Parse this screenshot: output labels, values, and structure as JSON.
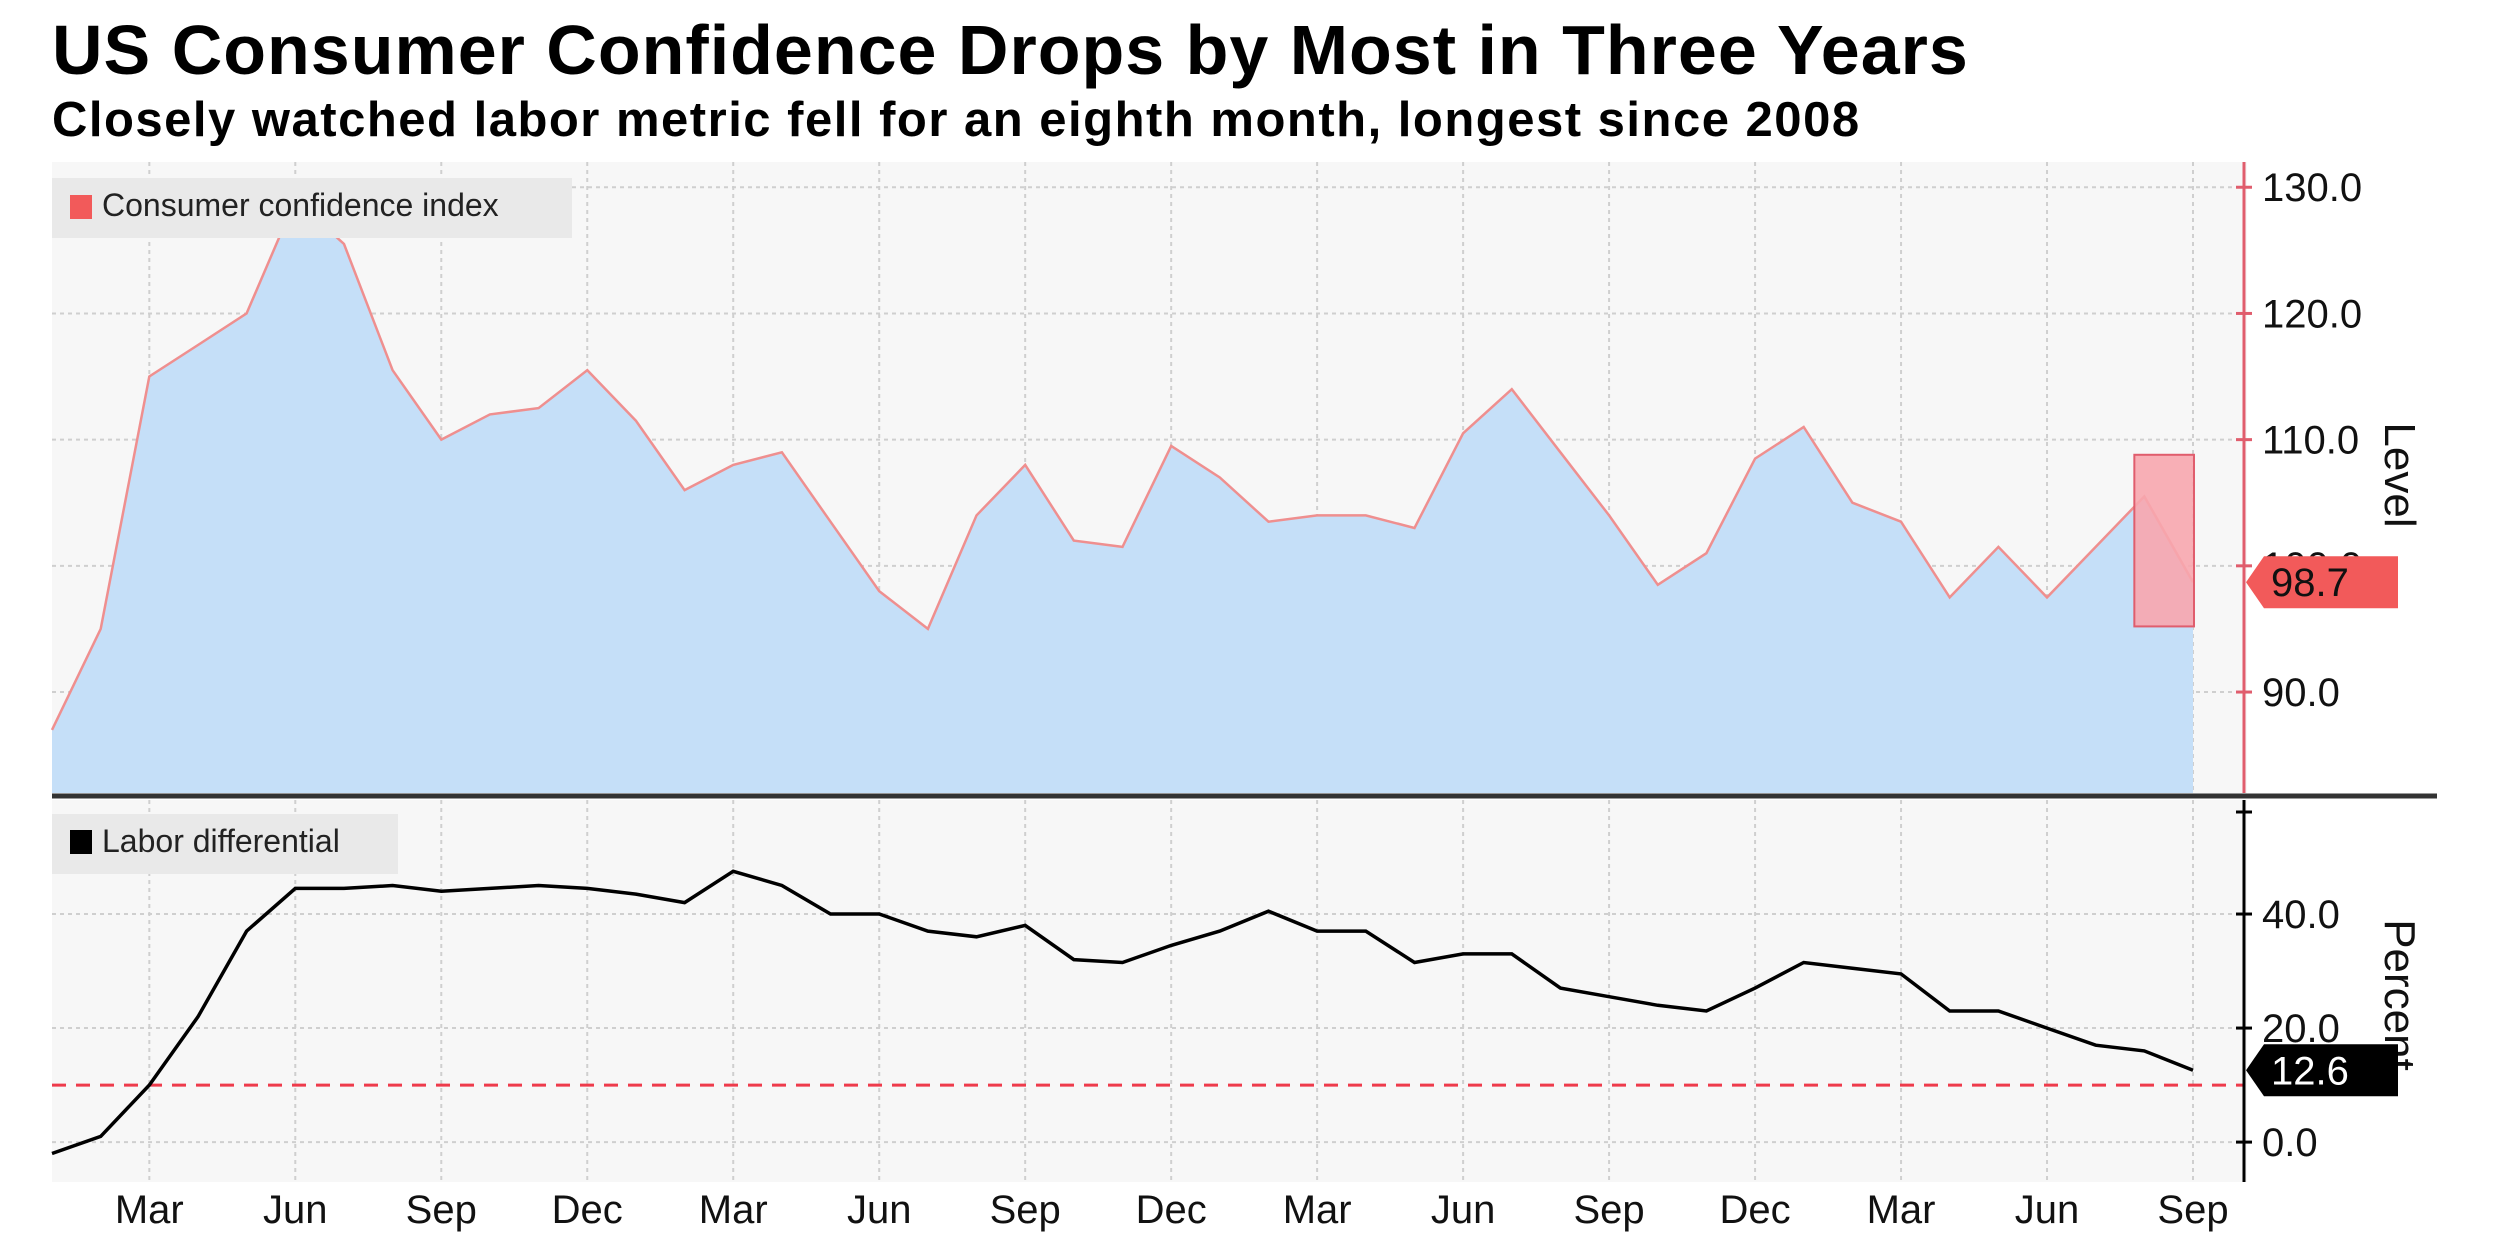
{
  "chart_data": {
    "title": "US Consumer Confidence Drops by Most in Three Years",
    "subtitle": "Closely watched labor metric fell for an eighth month, longest since 2008",
    "x_ticks": [
      "Mar",
      "Jun",
      "Sep",
      "Dec",
      "Mar",
      "Jun",
      "Sep",
      "Dec",
      "Mar",
      "Jun",
      "Sep",
      "Dec",
      "Mar",
      "Jun",
      "Sep"
    ],
    "panels": [
      {
        "type": "area",
        "legend": "Consumer confidence index",
        "ylabel": "Level",
        "ylim": [
          82,
          132
        ],
        "ticks": [
          90,
          100,
          110,
          120,
          130
        ],
        "tick_labels": [
          "90.0",
          "100.0",
          "110.0",
          "120.0",
          "130.0"
        ],
        "values": [
          87,
          95,
          115,
          117.5,
          120,
          129,
          125.5,
          115.5,
          110,
          112,
          112.5,
          115.5,
          111.5,
          106,
          108,
          109,
          103.5,
          98,
          95,
          104,
          108,
          102,
          101.5,
          109.5,
          107,
          103.5,
          104,
          104,
          103,
          110.5,
          114,
          109,
          104,
          98.5,
          101,
          108.5,
          111,
          105,
          103.5,
          97.5,
          101.5,
          97.5,
          101.5,
          105.5,
          98.7
        ],
        "last_value_label": "98.7",
        "highlight": {
          "from_index": 43,
          "to_index": 44,
          "ymin": 95.2,
          "ymax": 108.8
        }
      },
      {
        "type": "line",
        "legend": "Labor differential",
        "ylabel": "Percent",
        "ylim": [
          -7,
          60
        ],
        "ticks": [
          0,
          20,
          40
        ],
        "tick_labels": [
          "0.0",
          "20.0",
          "40.0"
        ],
        "reference_line": 10,
        "values": [
          -2,
          1,
          10,
          22,
          37,
          44.5,
          44.5,
          45,
          44,
          44.5,
          45,
          44.5,
          43.5,
          42,
          47.5,
          45,
          40,
          40,
          37,
          36,
          38,
          32,
          31.5,
          34.5,
          37,
          40.5,
          37,
          37,
          31.5,
          33,
          33,
          27,
          25.5,
          24,
          23,
          27,
          31.5,
          30.5,
          29.5,
          23,
          23,
          20,
          17,
          16,
          12.6
        ],
        "last_value_label": "12.6"
      }
    ]
  },
  "colors": {
    "area_fill": "#c5dff8",
    "area_line": "#ef8f8f",
    "highlight_fill": "#f7a6ae",
    "highlight_stroke": "#e05d6d",
    "level_axis": "#e05d6d",
    "level_badge": "#f25a5a",
    "labor_line": "#000000",
    "reference_line": "#ee3b4b",
    "labor_badge": "#000000",
    "grid": "#cfcfcf",
    "plot_bg": "#f7f7f7"
  }
}
